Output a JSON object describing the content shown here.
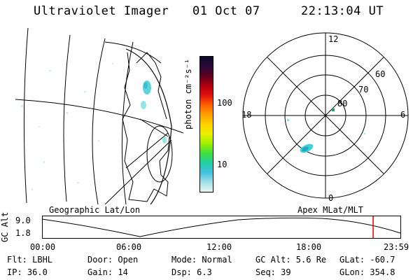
{
  "header": {
    "instrument": "Ultraviolet Imager",
    "date": "01 Oct 07",
    "time": "22:13:04 UT"
  },
  "colorbar": {
    "unit_label": "photon cm⁻²s⁻¹",
    "ticks": [
      "100",
      "10"
    ],
    "colors": [
      "#0a0a28",
      "#2a0a3a",
      "#600020",
      "#b00010",
      "#e01010",
      "#ff6000",
      "#ffa000",
      "#ffd000",
      "#e8f000",
      "#a0f000",
      "#40e040",
      "#20d0a0",
      "#40c0e0",
      "#a0e0e8",
      "#e8f4f4"
    ]
  },
  "polar": {
    "mlt_labels": [
      "12",
      "18",
      "6",
      "0"
    ],
    "lat_labels": [
      "60",
      "70",
      "80"
    ]
  },
  "altitude_plot": {
    "left_title": "Geographic Lat/Lon",
    "right_title": "Apex MLat/MLT",
    "ylabel": "GC Alt",
    "ymin": "1.8",
    "ymax": "9.0",
    "time_ticks": [
      "00:00",
      "06:00",
      "12:00",
      "18:00",
      "23:59"
    ],
    "current_time_fraction": 0.924,
    "colors": {
      "marker": "#e00000"
    }
  },
  "status": {
    "row1": [
      {
        "label": "Flt:",
        "value": "LBHL"
      },
      {
        "label": "Door:",
        "value": "Open"
      },
      {
        "label": "Mode:",
        "value": "Normal"
      },
      {
        "label": "GC Alt:",
        "value": "5.6 Re"
      },
      {
        "label": "GLat:",
        "value": "-60.7"
      }
    ],
    "row2": [
      {
        "label": "IP:",
        "value": "36.0"
      },
      {
        "label": "Gain:",
        "value": "14"
      },
      {
        "label": "Dsp:",
        "value": "6.3"
      },
      {
        "label": "Seq:",
        "value": "39"
      },
      {
        "label": "GLon:",
        "value": "354.8"
      }
    ]
  }
}
